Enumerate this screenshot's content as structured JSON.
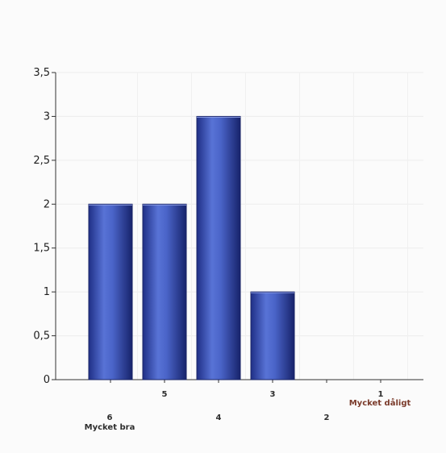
{
  "chart_data": {
    "type": "bar",
    "categories": [
      "6",
      "5",
      "4",
      "3",
      "2",
      "1"
    ],
    "category_sublabels": [
      "Mycket bra",
      "",
      "",
      "",
      "",
      "Mycket dåligt"
    ],
    "values": [
      2,
      2,
      3,
      1,
      0,
      0
    ],
    "title": "",
    "xlabel": "",
    "ylabel": "",
    "ylim": [
      0,
      3.5
    ],
    "yticks": [
      "0",
      "0,5",
      "1",
      "1,5",
      "2",
      "2,5",
      "3",
      "3,5"
    ],
    "grid": true,
    "bar_color": "#3c56b8",
    "legend": "none"
  }
}
